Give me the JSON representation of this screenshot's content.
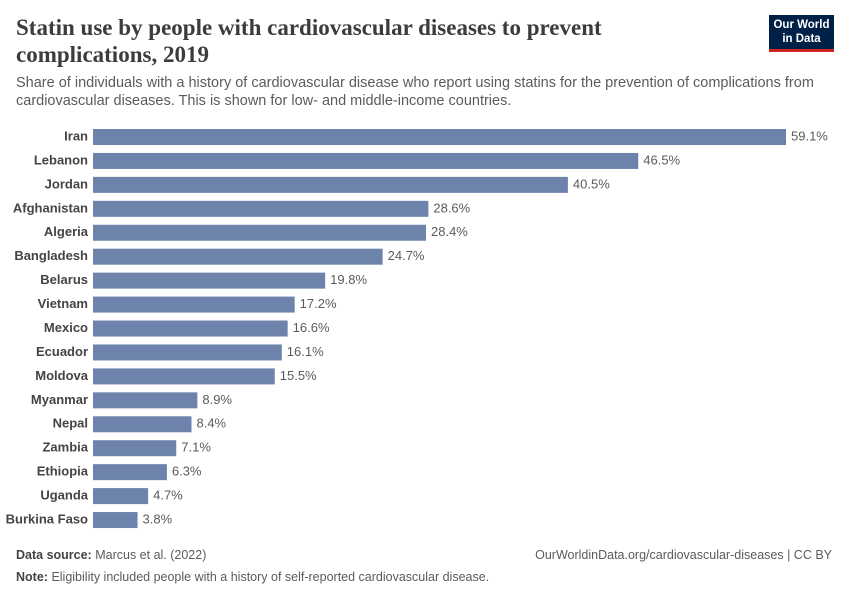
{
  "chart_data": {
    "type": "bar",
    "orientation": "horizontal",
    "title": "Statin use by people with cardiovascular diseases to prevent complications, 2019",
    "subtitle": "Share of individuals with a history of cardiovascular disease who report using statins for the prevention of complications from cardiovascular diseases. This is shown for low- and middle-income countries.",
    "categories": [
      "Iran",
      "Lebanon",
      "Jordan",
      "Afghanistan",
      "Algeria",
      "Bangladesh",
      "Belarus",
      "Vietnam",
      "Mexico",
      "Ecuador",
      "Moldova",
      "Myanmar",
      "Nepal",
      "Zambia",
      "Ethiopia",
      "Uganda",
      "Burkina Faso"
    ],
    "values": [
      59.1,
      46.5,
      40.5,
      28.6,
      28.4,
      24.7,
      19.8,
      17.2,
      16.6,
      16.1,
      15.5,
      8.9,
      8.4,
      7.1,
      6.3,
      4.7,
      3.8
    ],
    "value_labels": [
      "59.1%",
      "46.5%",
      "40.5%",
      "28.6%",
      "28.4%",
      "24.7%",
      "19.8%",
      "17.2%",
      "16.6%",
      "16.1%",
      "15.5%",
      "8.9%",
      "8.4%",
      "7.1%",
      "6.3%",
      "4.7%",
      "3.8%"
    ],
    "color": "#6d83ac",
    "logo": [
      "Our World",
      "in Data"
    ],
    "source_label": "Data source:",
    "source": "Marcus et al. (2022)",
    "url": "OurWorldinData.org/cardiovascular-diseases | CC BY",
    "note_label": "Note:",
    "note": "Eligibility included people with a history of self-reported cardiovascular disease."
  }
}
